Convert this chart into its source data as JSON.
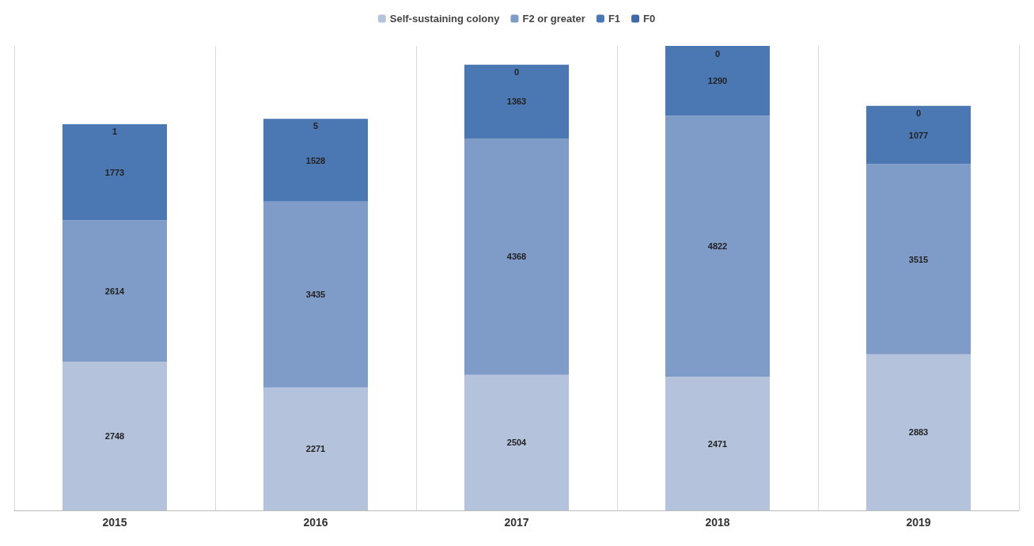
{
  "chart_data": {
    "type": "bar",
    "stacked": true,
    "categories": [
      "2015",
      "2016",
      "2017",
      "2018",
      "2019"
    ],
    "series": [
      {
        "name": "Self-sustaining colony",
        "color": "#b4c2dc",
        "values": [
          2748,
          2271,
          2504,
          2471,
          2883
        ]
      },
      {
        "name": "F2 or greater",
        "color": "#7f9bc8",
        "values": [
          2614,
          3435,
          4368,
          4822,
          3515
        ]
      },
      {
        "name": "F1",
        "color": "#4b78b3",
        "values": [
          1773,
          1528,
          1363,
          1290,
          1077
        ]
      },
      {
        "name": "F0",
        "color": "#3f6aa6",
        "values": [
          1,
          5,
          0,
          0,
          0
        ]
      }
    ],
    "data_labels": true,
    "tick_labels": "x",
    "grid": "x",
    "legend": "top"
  }
}
